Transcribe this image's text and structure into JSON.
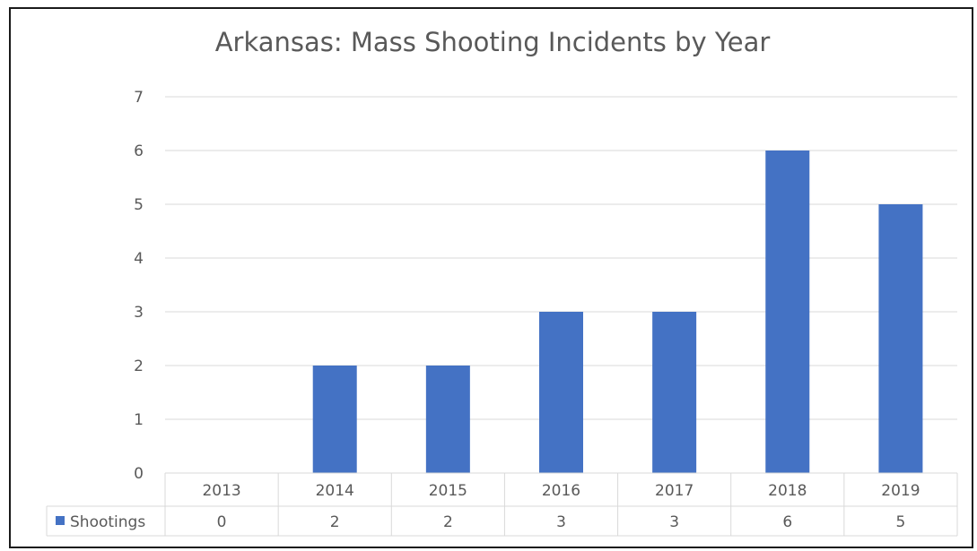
{
  "chart_data": {
    "type": "bar",
    "title": "Arkansas: Mass Shooting Incidents by Year",
    "categories": [
      "2013",
      "2014",
      "2015",
      "2016",
      "2017",
      "2018",
      "2019"
    ],
    "series": [
      {
        "name": "Shootings",
        "values": [
          0,
          2,
          2,
          3,
          3,
          6,
          5
        ],
        "color": "#4472c4"
      }
    ],
    "ylim": [
      0,
      7
    ],
    "yticks": [
      "0",
      "1",
      "2",
      "3",
      "4",
      "5",
      "6",
      "7"
    ],
    "grid": true,
    "legend": "data-table"
  }
}
